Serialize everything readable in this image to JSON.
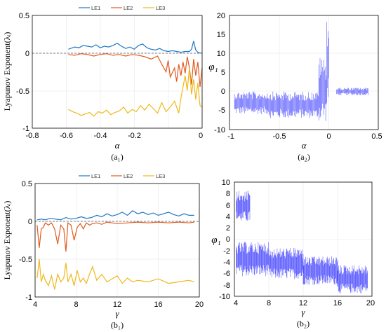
{
  "colors": {
    "le1": "#1f77c4",
    "le2": "#e05a1e",
    "le3": "#f0b81a",
    "phi": "#1a1aff",
    "dashed": "#555555"
  },
  "chart_data": [
    {
      "panel": "a1",
      "type": "line",
      "xlabel": "α",
      "ylabel": "Lyapunov Exponent(λᵢ)",
      "panel_label": "(a₁)",
      "xlim": [
        -0.8,
        0
      ],
      "ylim": [
        -1,
        0.5
      ],
      "xticks": [
        "-0.8",
        "-0.6",
        "-0.4",
        "-0.2",
        "0"
      ],
      "yticks": [
        "0.5",
        "0",
        "-0.5",
        "-1"
      ],
      "legend_position": "top-center",
      "series": [
        {
          "name": "LE1",
          "x": [
            -0.63,
            -0.62,
            -0.6,
            -0.58,
            -0.56,
            -0.54,
            -0.52,
            -0.5,
            -0.48,
            -0.46,
            -0.44,
            -0.42,
            -0.4,
            -0.38,
            -0.36,
            -0.34,
            -0.32,
            -0.3,
            -0.28,
            -0.26,
            -0.24,
            -0.22,
            -0.2,
            -0.18,
            -0.16,
            -0.14,
            -0.12,
            -0.1,
            -0.08,
            -0.06,
            -0.05,
            -0.04,
            -0.03,
            -0.02,
            -0.01,
            0
          ],
          "y": [
            0.05,
            0.06,
            0.08,
            0.07,
            0.1,
            0.09,
            0.08,
            0.11,
            0.07,
            0.09,
            0.08,
            0.1,
            0.13,
            0.09,
            0.06,
            0.08,
            0.05,
            0.1,
            0.12,
            0.07,
            0.05,
            0.04,
            0.06,
            0.03,
            0.02,
            0.03,
            0.02,
            0.01,
            0.02,
            0.02,
            0.05,
            0.16,
            0.04,
            0.01,
            0.0,
            0.0
          ]
        },
        {
          "name": "LE2",
          "x": [
            -0.63,
            -0.6,
            -0.57,
            -0.54,
            -0.51,
            -0.48,
            -0.45,
            -0.42,
            -0.39,
            -0.36,
            -0.33,
            -0.3,
            -0.27,
            -0.24,
            -0.21,
            -0.19,
            -0.17,
            -0.16,
            -0.15,
            -0.13,
            -0.12,
            -0.11,
            -0.1,
            -0.09,
            -0.08,
            -0.07,
            -0.06,
            -0.05,
            -0.04,
            -0.03,
            -0.02,
            -0.01,
            0
          ],
          "y": [
            -0.02,
            -0.03,
            -0.01,
            -0.02,
            -0.04,
            -0.02,
            -0.01,
            -0.03,
            -0.02,
            -0.04,
            -0.02,
            -0.03,
            -0.05,
            -0.08,
            -0.04,
            -0.15,
            -0.25,
            -0.1,
            -0.32,
            -0.2,
            -0.38,
            -0.15,
            -0.3,
            -0.12,
            -0.27,
            -0.05,
            -0.2,
            -0.42,
            -0.08,
            -0.3,
            -0.12,
            -0.45,
            -0.2
          ]
        },
        {
          "name": "LE3",
          "x": [
            -0.63,
            -0.61,
            -0.59,
            -0.57,
            -0.55,
            -0.53,
            -0.51,
            -0.49,
            -0.47,
            -0.45,
            -0.43,
            -0.41,
            -0.39,
            -0.37,
            -0.35,
            -0.33,
            -0.31,
            -0.29,
            -0.27,
            -0.25,
            -0.23,
            -0.21,
            -0.19,
            -0.17,
            -0.15,
            -0.13,
            -0.11,
            -0.1,
            -0.09,
            -0.08,
            -0.07,
            -0.06,
            -0.05,
            -0.04,
            -0.03,
            -0.02,
            -0.01,
            0
          ],
          "y": [
            -0.75,
            -0.78,
            -0.8,
            -0.83,
            -0.81,
            -0.79,
            -0.84,
            -0.78,
            -0.8,
            -0.76,
            -0.82,
            -0.79,
            -0.77,
            -0.72,
            -0.8,
            -0.75,
            -0.78,
            -0.7,
            -0.76,
            -0.68,
            -0.74,
            -0.8,
            -0.66,
            -0.78,
            -0.72,
            -0.64,
            -0.8,
            -0.6,
            -0.45,
            -0.3,
            -0.5,
            -0.2,
            -0.55,
            -0.35,
            -0.62,
            -0.4,
            -0.7,
            -0.72
          ]
        }
      ],
      "reference_line_y": 0
    },
    {
      "panel": "a2",
      "type": "line",
      "xlabel": "α",
      "ylabel": "φ₁",
      "panel_label": "(a₂)",
      "xlim": [
        -1,
        0.5
      ],
      "ylim": [
        -10,
        20
      ],
      "xticks": [
        "-1",
        "-0.5",
        "0",
        "0.5"
      ],
      "yticks": [
        "20",
        "15",
        "10",
        "5",
        "0",
        "-5",
        "-10"
      ],
      "spike_regions": [
        {
          "x_from": -0.95,
          "x_to": -0.6,
          "y_low": -6,
          "y_high": 0
        },
        {
          "x_from": -0.6,
          "x_to": -0.1,
          "y_low": -7,
          "y_high": 0
        },
        {
          "x_from": -0.1,
          "x_to": -0.02,
          "y_low": -8,
          "y_high": 9
        },
        {
          "x_from": -0.02,
          "x_to": 0.0,
          "y_low": -5,
          "y_high": 20
        },
        {
          "x_from": 0.08,
          "x_to": 0.4,
          "y_low": -1,
          "y_high": 1
        }
      ]
    },
    {
      "panel": "b1",
      "type": "line",
      "xlabel": "γ",
      "ylabel": "Lyapunov Exponent(λᵢ)",
      "panel_label": "(b₁)",
      "xlim": [
        4,
        20
      ],
      "ylim": [
        -1,
        0.5
      ],
      "xticks": [
        "4",
        "8",
        "12",
        "16",
        "20"
      ],
      "yticks": [
        "0.5",
        "0",
        "-0.5",
        "-1"
      ],
      "legend_position": "top-center",
      "series": [
        {
          "name": "LE1",
          "x": [
            4.2,
            4.6,
            5,
            5.5,
            6,
            6.5,
            7,
            7.5,
            8,
            8.5,
            9,
            9.5,
            10,
            10.5,
            11,
            11.5,
            12,
            12.5,
            13,
            13.5,
            14,
            14.5,
            15,
            15.5,
            16,
            16.5,
            17,
            17.5,
            18,
            18.5,
            19,
            19.5
          ],
          "y": [
            0.02,
            0.03,
            0.02,
            0.04,
            0.03,
            0.02,
            0.05,
            0.03,
            0.04,
            0.06,
            0.04,
            0.05,
            0.08,
            0.06,
            0.1,
            0.07,
            0.09,
            0.12,
            0.08,
            0.14,
            0.1,
            0.12,
            0.09,
            0.11,
            0.08,
            0.1,
            0.12,
            0.09,
            0.07,
            0.1,
            0.08,
            0.08
          ]
        },
        {
          "name": "LE2",
          "x": [
            4.2,
            4.4,
            4.6,
            4.8,
            5,
            5.3,
            5.6,
            5.9,
            6.2,
            6.5,
            6.8,
            7,
            7.2,
            7.5,
            7.8,
            8.1,
            8.4,
            8.7,
            9,
            9.3,
            9.6,
            10,
            10.5,
            11,
            11.5,
            12,
            13,
            14,
            15,
            16,
            17,
            18,
            19,
            19.5
          ],
          "y": [
            -0.05,
            -0.35,
            -0.1,
            -0.08,
            -0.02,
            -0.05,
            -0.02,
            -0.1,
            -0.3,
            -0.05,
            -0.1,
            -0.4,
            -0.02,
            -0.05,
            -0.25,
            -0.08,
            -0.03,
            -0.1,
            -0.02,
            -0.05,
            -0.03,
            -0.02,
            -0.04,
            -0.01,
            -0.02,
            -0.03,
            -0.02,
            -0.01,
            -0.02,
            -0.01,
            -0.02,
            -0.01,
            -0.02,
            -0.01
          ]
        },
        {
          "name": "LE3",
          "x": [
            4.2,
            4.4,
            4.6,
            4.8,
            5,
            5.3,
            5.6,
            5.9,
            6.2,
            6.5,
            6.8,
            7,
            7.2,
            7.5,
            7.8,
            8.1,
            8.4,
            8.7,
            9,
            9.3,
            9.6,
            10,
            10.5,
            11,
            11.5,
            12,
            12.5,
            13,
            13.5,
            14,
            15,
            16,
            17,
            18,
            19,
            19.5
          ],
          "y": [
            -0.75,
            -0.5,
            -0.8,
            -0.7,
            -0.78,
            -0.85,
            -0.72,
            -0.9,
            -0.7,
            -0.8,
            -0.75,
            -0.55,
            -0.8,
            -0.7,
            -0.85,
            -0.65,
            -0.8,
            -0.75,
            -0.82,
            -0.7,
            -0.6,
            -0.78,
            -0.7,
            -0.8,
            -0.76,
            -0.72,
            -0.82,
            -0.75,
            -0.8,
            -0.78,
            -0.8,
            -0.76,
            -0.82,
            -0.8,
            -0.78,
            -0.8
          ]
        }
      ],
      "reference_line_y": 0
    },
    {
      "panel": "b2",
      "type": "line",
      "xlabel": "γ",
      "ylabel": "φ₁",
      "panel_label": "(b₂)",
      "xlim": [
        4,
        20
      ],
      "ylim": [
        -10,
        10
      ],
      "xticks": [
        "4",
        "8",
        "12",
        "16",
        "20"
      ],
      "yticks": [
        "10",
        "8",
        "6",
        "4",
        "2",
        "0",
        "-2",
        "-4",
        "-6",
        "-8",
        "-10"
      ],
      "spike_regions": [
        {
          "x_from": 4.2,
          "x_to": 5.8,
          "y_low": 3,
          "y_high": 8.5
        },
        {
          "x_from": 4.2,
          "x_to": 8,
          "y_low": -6.5,
          "y_high": -0.5
        },
        {
          "x_from": 8,
          "x_to": 12,
          "y_low": -7,
          "y_high": -1.5
        },
        {
          "x_from": 12,
          "x_to": 16,
          "y_low": -8,
          "y_high": -3
        },
        {
          "x_from": 16,
          "x_to": 19.5,
          "y_low": -9.5,
          "y_high": -4.5
        }
      ]
    }
  ]
}
